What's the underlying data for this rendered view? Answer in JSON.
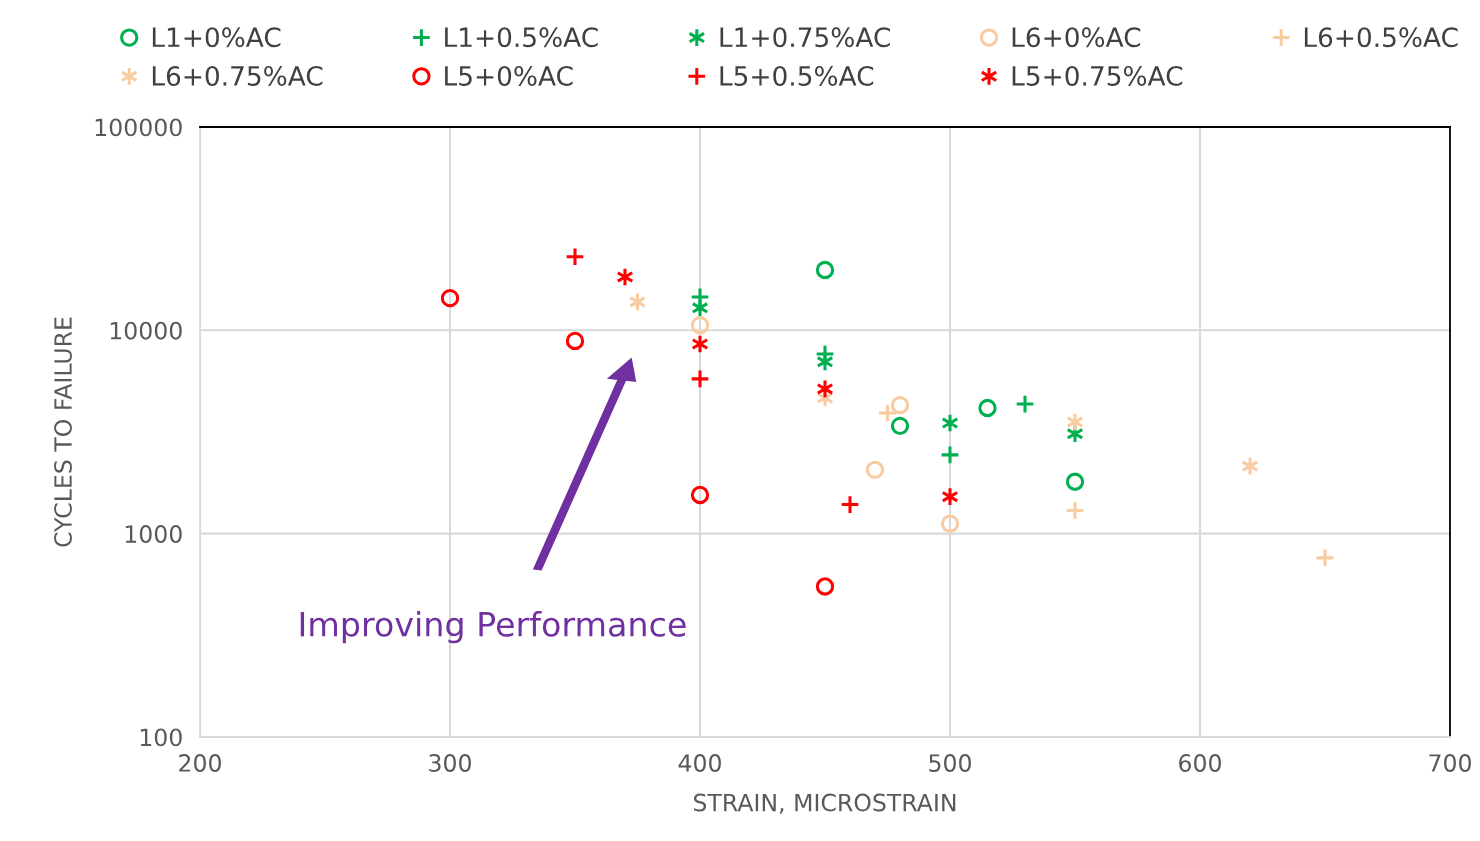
{
  "chart_data": {
    "type": "scatter",
    "xlabel": "STRAIN, MICROSTRAIN",
    "ylabel": "CYCLES TO FAILURE",
    "xlim": [
      200,
      700
    ],
    "xticks": [
      200,
      300,
      400,
      500,
      600,
      700
    ],
    "ylim": [
      100,
      100000
    ],
    "yticks": [
      100,
      1000,
      10000,
      100000
    ],
    "log": "y",
    "grid": true,
    "legend": "top",
    "annotations": [
      "Improving Performance"
    ],
    "series": [
      {
        "name": "L1+0%AC",
        "color": "#00b050",
        "marker": "circle",
        "x": [
          450,
          480,
          515,
          550
        ],
        "values": [
          19800,
          3390,
          4150,
          1800
        ]
      },
      {
        "name": "L1+0.5%AC",
        "color": "#00b050",
        "x": [
          400,
          450,
          500,
          530
        ],
        "values": [
          14600,
          7650,
          2440,
          4340
        ]
      },
      {
        "name": "L1+0.75%AC",
        "color": "#00b050",
        "marker": "cross",
        "x": [
          400,
          450,
          500,
          550
        ],
        "values": [
          12900,
          7000,
          3500,
          3100
        ]
      },
      {
        "name": "L6+0%AC",
        "color": "#f8cba0",
        "marker": "circle",
        "x": [
          400,
          470,
          480,
          500
        ],
        "values": [
          10600,
          2060,
          4290,
          1120
        ]
      },
      {
        "name": "L6+0.5%AC",
        "color": "#f8cba0",
        "x": [
          475,
          550,
          650
        ],
        "values": [
          3920,
          1300,
          760
        ]
      },
      {
        "name": "L6+0.75%AC",
        "color": "#f8cba0",
        "marker": "cross",
        "x": [
          375,
          450,
          550,
          620
        ],
        "values": [
          13800,
          4650,
          3540,
          2150
        ]
      },
      {
        "name": "L5+0%AC",
        "color": "#ff0000",
        "marker": "circle",
        "x": [
          300,
          350,
          400,
          450
        ],
        "values": [
          14400,
          8870,
          1550,
          550
        ]
      },
      {
        "name": "L5+0.5%AC",
        "color": "#ff0000",
        "x": [
          350,
          400,
          460
        ],
        "values": [
          23000,
          5770,
          1390
        ]
      },
      {
        "name": "L5+0.75%AC",
        "color": "#ff0000",
        "marker": "cross",
        "x": [
          370,
          400,
          450,
          500
        ],
        "values": [
          18300,
          8570,
          5150,
          1520
        ]
      }
    ]
  }
}
